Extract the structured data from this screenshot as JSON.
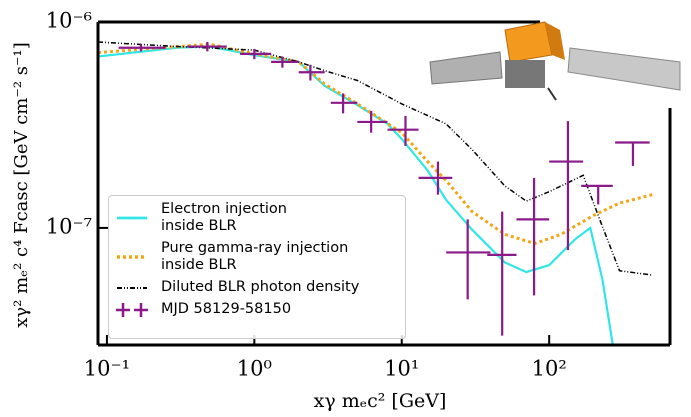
{
  "chart_data": {
    "type": "line",
    "log_x": true,
    "log_y": true,
    "x_label": "xγ mₑc²   [GeV]",
    "y_label": "xγ² mₑ² c⁴  Fcasc  [GeV cm⁻² s⁻¹]",
    "xlim": [
      0.087,
      660
    ],
    "ylim": [
      2.7e-08,
      1e-06
    ],
    "xticks": [
      {
        "value": 0.1,
        "label": "10⁻¹"
      },
      {
        "value": 1,
        "label": "10⁰"
      },
      {
        "value": 10,
        "label": "10¹"
      },
      {
        "value": 100,
        "label": "10²"
      }
    ],
    "yticks": [
      {
        "value": 1e-07,
        "label": "10⁻⁷"
      },
      {
        "value": 1e-06,
        "label": "10⁻⁶"
      }
    ],
    "series": [
      {
        "name": "Electron injection\ninside BLR",
        "color": "#33e6e6",
        "style": "solid",
        "x": [
          0.087,
          0.3,
          0.5,
          1,
          2,
          3,
          5,
          8,
          10,
          15,
          20,
          30,
          50,
          70,
          100,
          150,
          190,
          230,
          270
        ],
        "values": [
          6.8e-07,
          7.5e-07,
          7.6e-07,
          6.9e-07,
          6.4e-07,
          4.9e-07,
          3.95e-07,
          3.2e-07,
          2.7e-07,
          1.9e-07,
          1.37e-07,
          9.8e-08,
          6.8e-08,
          6.1e-08,
          6.6e-08,
          8.8e-08,
          1e-07,
          5.6e-08,
          2.7e-08
        ]
      },
      {
        "name": "Pure gamma-ray injection\ninside BLR",
        "color": "#f2a516",
        "style": "dotted",
        "x": [
          0.087,
          0.5,
          1,
          2,
          3,
          5,
          10,
          15,
          20,
          30,
          50,
          80,
          120,
          200,
          300,
          500
        ],
        "values": [
          7.1e-07,
          7.8e-07,
          7e-07,
          6.4e-07,
          5e-07,
          4e-07,
          2.9e-07,
          2.1e-07,
          1.7e-07,
          1.2e-07,
          9.3e-08,
          8.4e-08,
          9.3e-08,
          1.15e-07,
          1.32e-07,
          1.45e-07
        ]
      },
      {
        "name": "Diluted BLR photon density",
        "color": "#000000",
        "style": "dashdot",
        "x": [
          0.087,
          0.3,
          1,
          2,
          3,
          5,
          10,
          20,
          30,
          50,
          70,
          100,
          170,
          220,
          300,
          500
        ],
        "values": [
          8e-07,
          7.6e-07,
          7.3e-07,
          6.4e-07,
          5.8e-07,
          5.2e-07,
          4e-07,
          3.2e-07,
          2.4e-07,
          1.6e-07,
          1.35e-07,
          1.5e-07,
          1.8e-07,
          1.1e-07,
          6.2e-08,
          5.9e-08
        ]
      },
      {
        "name": "MJD 58129-58150",
        "color": "#8b1a89",
        "style": "errorbar",
        "x": [
          0.17,
          0.48,
          1.0,
          1.55,
          2.4,
          4,
          6.2,
          10.6,
          17.6,
          28,
          48,
          79,
          134,
          215,
          370
        ],
        "values": [
          7.5e-07,
          7.6e-07,
          7e-07,
          6.4e-07,
          5.7e-07,
          4.05e-07,
          3.27e-07,
          3e-07,
          1.75e-07,
          7.6e-08,
          7.4e-08,
          1.1e-07,
          2.1e-07,
          1.6e-07,
          2.6e-07
        ],
        "x_min": [
          0.12,
          0.35,
          0.8,
          1.3,
          2.0,
          3.3,
          5,
          8,
          13,
          20,
          38,
          60,
          100,
          165,
          280
        ],
        "x_max": [
          0.25,
          0.65,
          1.3,
          2.0,
          3.0,
          5,
          8,
          13,
          22,
          40,
          60,
          100,
          170,
          270,
          480
        ],
        "y_min": [
          7.2e-07,
          7.2e-07,
          6.6e-07,
          6e-07,
          5.2e-07,
          3.6e-07,
          2.9e-07,
          2.5e-07,
          1.45e-07,
          4.5e-08,
          3e-08,
          4.7e-08,
          7.8e-08,
          1.3e-07,
          2e-07
        ],
        "y_max": [
          7.8e-07,
          8e-07,
          7.4e-07,
          6.8e-07,
          6.2e-07,
          4.5e-07,
          3.7e-07,
          3.5e-07,
          2.1e-07,
          1.1e-07,
          1.2e-07,
          1.75e-07,
          3.3e-07,
          1.6e-07,
          2.6e-07
        ],
        "upper_limit": [
          false,
          false,
          false,
          false,
          false,
          false,
          false,
          false,
          false,
          false,
          false,
          false,
          false,
          false,
          true
        ]
      }
    ]
  }
}
